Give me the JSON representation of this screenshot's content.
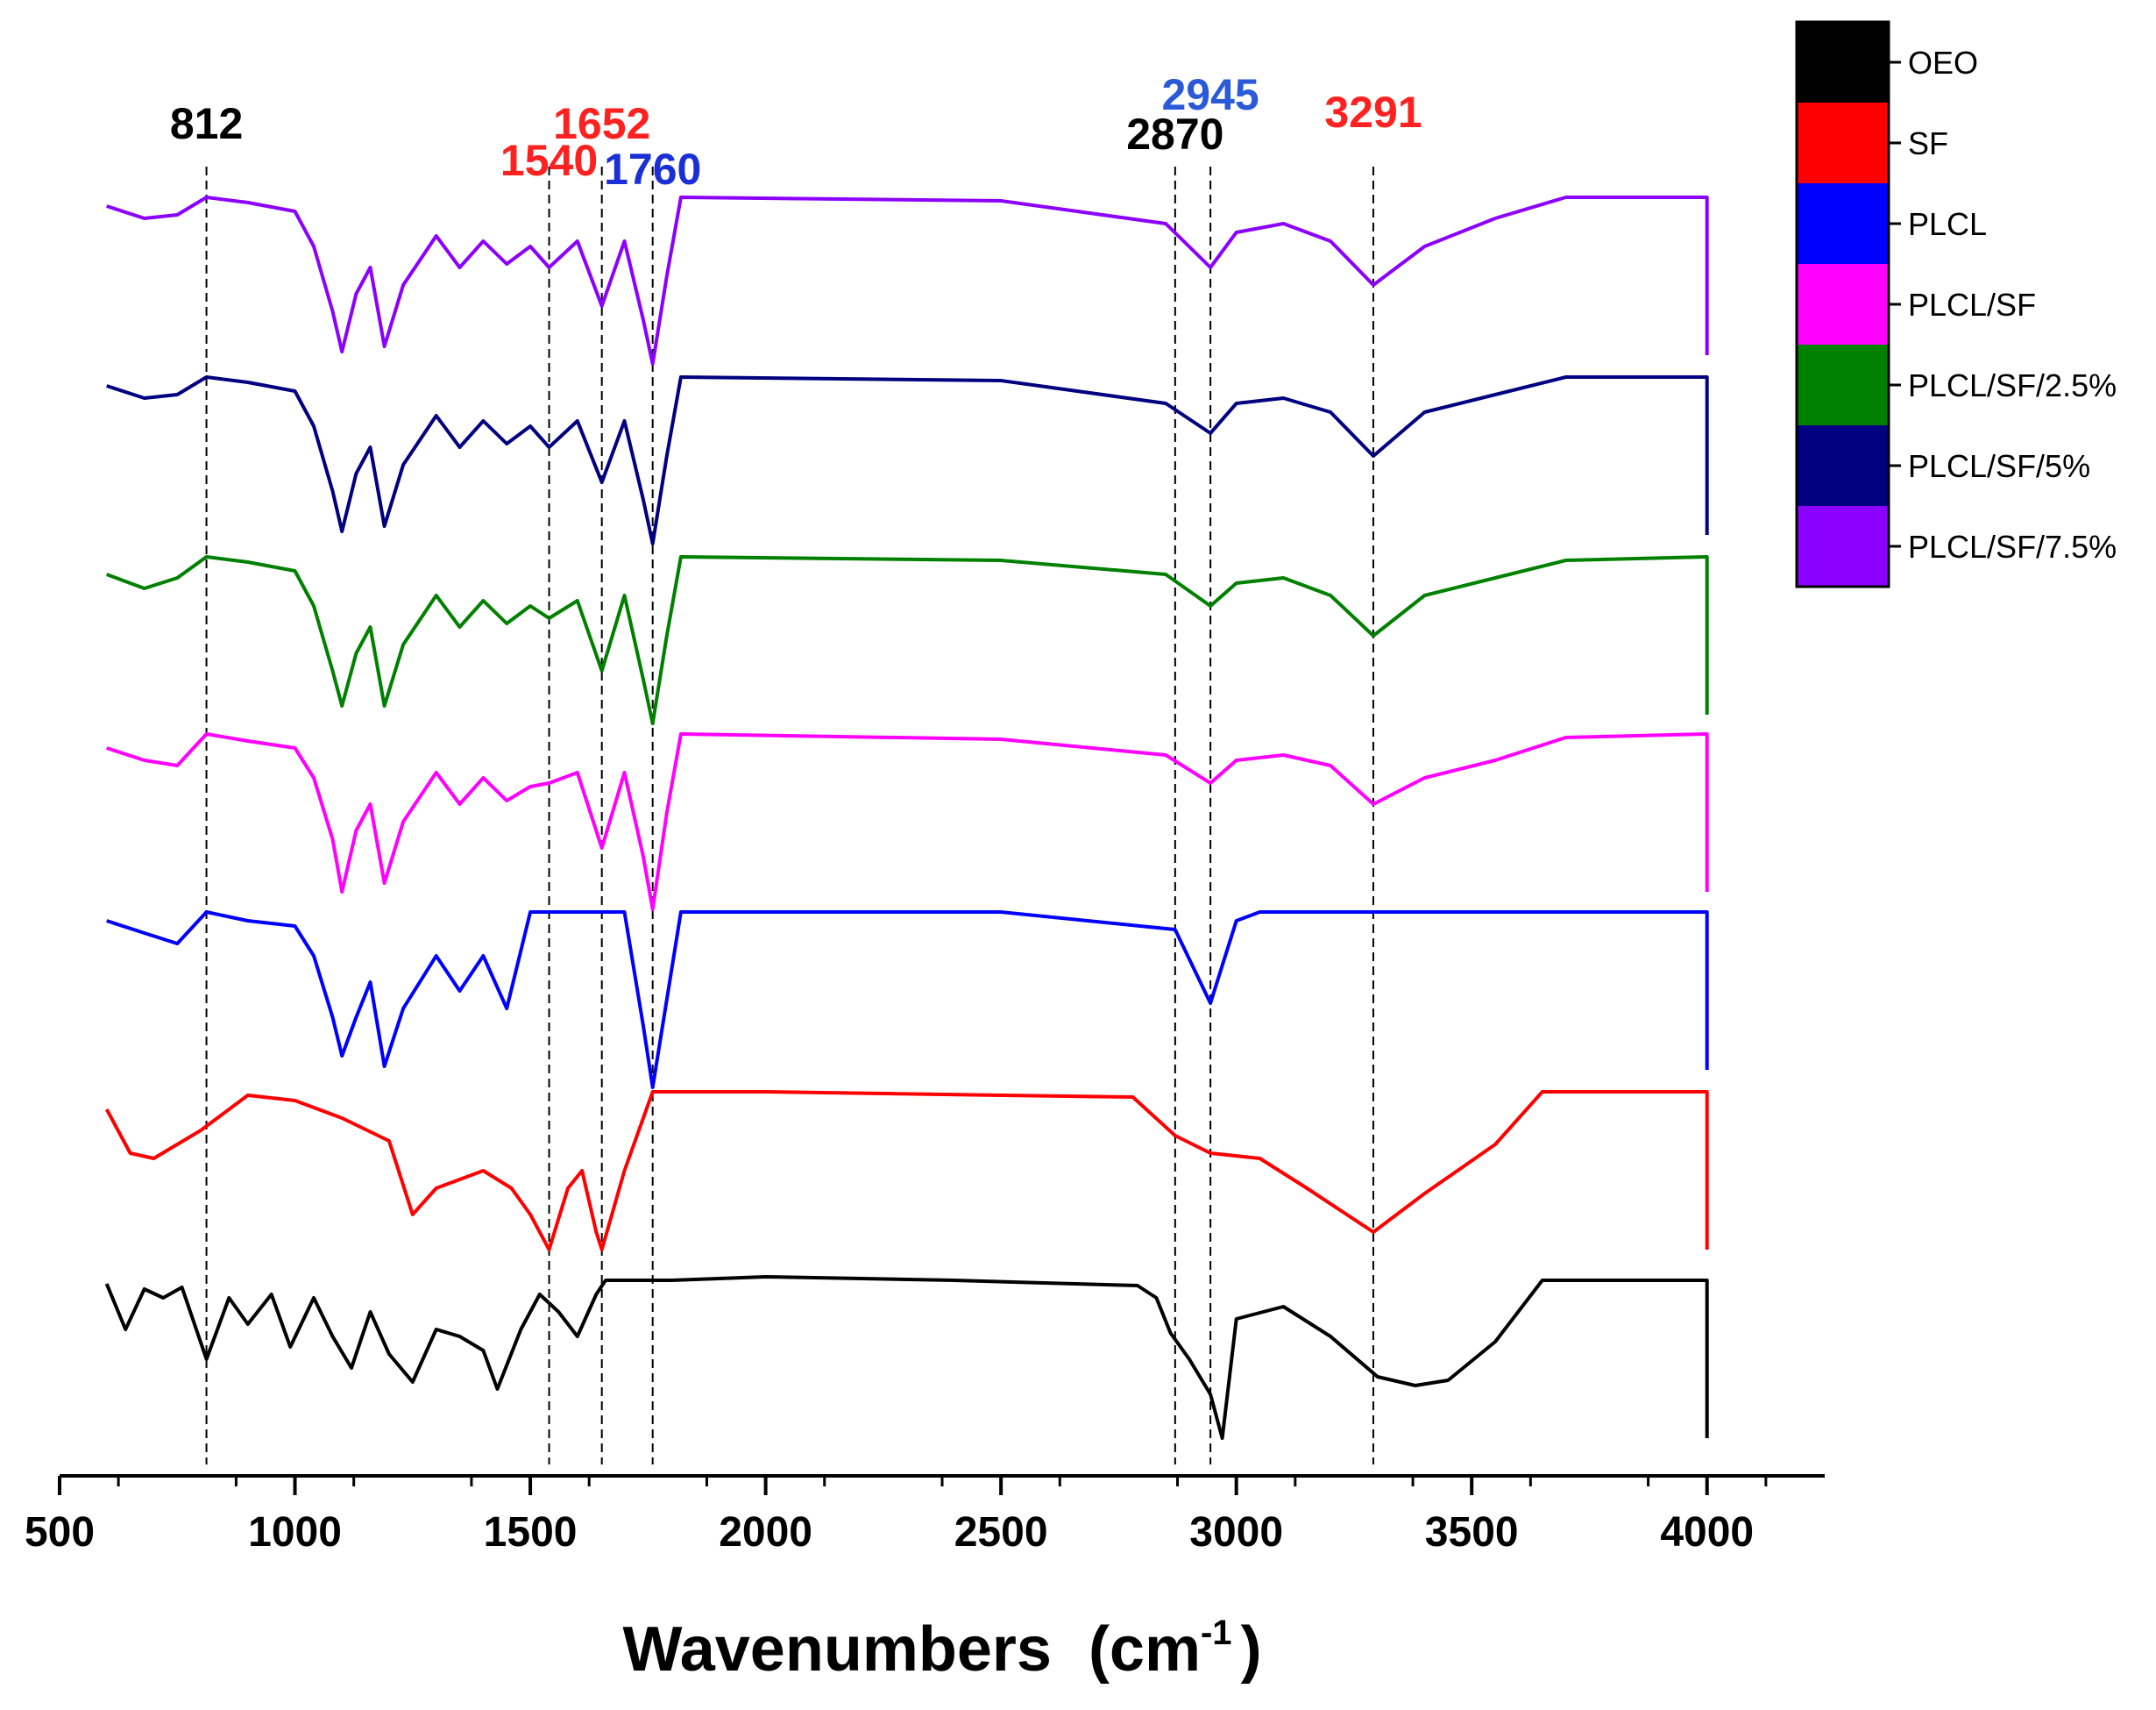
{
  "chart_data": {
    "type": "line",
    "title": "",
    "xlabel": "Wavenumbers",
    "xlabel_unit_base": "cm",
    "xlabel_unit_exp": "-1",
    "ylabel": "",
    "xlim": [
      500,
      4250
    ],
    "x_ticks": [
      500,
      1000,
      1500,
      2000,
      2500,
      3000,
      3500,
      4000
    ],
    "legend_position": "top-right",
    "grid": false,
    "peak_markers": [
      {
        "x": 812,
        "label": "812",
        "color": "#000000"
      },
      {
        "x": 1540,
        "label": "1540",
        "color": "#ff2020"
      },
      {
        "x": 1652,
        "label": "1652",
        "color": "#ff2020"
      },
      {
        "x": 1760,
        "label": "1760",
        "color": "#1a2fd6"
      },
      {
        "x": 2870,
        "label": "2870",
        "color": "#000000"
      },
      {
        "x": 2945,
        "label": "2945",
        "color": "#2a5ad8"
      },
      {
        "x": 3291,
        "label": "3291",
        "color": "#ff2020"
      }
    ],
    "series": [
      {
        "name": "OEO",
        "color": "#000000",
        "points": [
          [
            600,
            0.98
          ],
          [
            640,
            0.72
          ],
          [
            680,
            0.95
          ],
          [
            720,
            0.9
          ],
          [
            760,
            0.96
          ],
          [
            812,
            0.55
          ],
          [
            860,
            0.9
          ],
          [
            900,
            0.75
          ],
          [
            950,
            0.92
          ],
          [
            990,
            0.62
          ],
          [
            1040,
            0.9
          ],
          [
            1080,
            0.68
          ],
          [
            1120,
            0.5
          ],
          [
            1160,
            0.82
          ],
          [
            1200,
            0.58
          ],
          [
            1250,
            0.42
          ],
          [
            1300,
            0.72
          ],
          [
            1350,
            0.68
          ],
          [
            1400,
            0.6
          ],
          [
            1430,
            0.38
          ],
          [
            1480,
            0.72
          ],
          [
            1520,
            0.92
          ],
          [
            1560,
            0.82
          ],
          [
            1600,
            0.68
          ],
          [
            1640,
            0.92
          ],
          [
            1660,
            1.0
          ],
          [
            1800,
            1.0
          ],
          [
            2000,
            1.02
          ],
          [
            2400,
            1.0
          ],
          [
            2790,
            0.97
          ],
          [
            2830,
            0.9
          ],
          [
            2860,
            0.7
          ],
          [
            2900,
            0.55
          ],
          [
            2945,
            0.35
          ],
          [
            2970,
            0.1
          ],
          [
            3000,
            0.78
          ],
          [
            3100,
            0.85
          ],
          [
            3200,
            0.68
          ],
          [
            3300,
            0.45
          ],
          [
            3380,
            0.4
          ],
          [
            3450,
            0.43
          ],
          [
            3550,
            0.65
          ],
          [
            3650,
            1.0
          ],
          [
            4000,
            1.0
          ]
        ]
      },
      {
        "name": "SF",
        "color": "#ff0000",
        "points": [
          [
            600,
            0.9
          ],
          [
            650,
            0.65
          ],
          [
            700,
            0.62
          ],
          [
            800,
            0.78
          ],
          [
            900,
            0.98
          ],
          [
            1000,
            0.95
          ],
          [
            1100,
            0.85
          ],
          [
            1200,
            0.72
          ],
          [
            1250,
            0.3
          ],
          [
            1300,
            0.45
          ],
          [
            1400,
            0.55
          ],
          [
            1460,
            0.45
          ],
          [
            1500,
            0.3
          ],
          [
            1540,
            0.1
          ],
          [
            1580,
            0.45
          ],
          [
            1610,
            0.55
          ],
          [
            1640,
            0.2
          ],
          [
            1652,
            0.1
          ],
          [
            1700,
            0.55
          ],
          [
            1760,
            1.0
          ],
          [
            2000,
            1.0
          ],
          [
            2500,
            0.98
          ],
          [
            2780,
            0.97
          ],
          [
            2870,
            0.75
          ],
          [
            2945,
            0.65
          ],
          [
            3050,
            0.62
          ],
          [
            3150,
            0.45
          ],
          [
            3291,
            0.2
          ],
          [
            3400,
            0.42
          ],
          [
            3550,
            0.7
          ],
          [
            3650,
            1.0
          ],
          [
            4000,
            1.0
          ]
        ]
      },
      {
        "name": "PLCL",
        "color": "#0000ff",
        "points": [
          [
            600,
            0.95
          ],
          [
            680,
            0.88
          ],
          [
            750,
            0.82
          ],
          [
            812,
            1.0
          ],
          [
            900,
            0.95
          ],
          [
            1000,
            0.92
          ],
          [
            1040,
            0.75
          ],
          [
            1080,
            0.4
          ],
          [
            1100,
            0.18
          ],
          [
            1130,
            0.4
          ],
          [
            1160,
            0.6
          ],
          [
            1190,
            0.12
          ],
          [
            1230,
            0.45
          ],
          [
            1300,
            0.75
          ],
          [
            1350,
            0.55
          ],
          [
            1400,
            0.75
          ],
          [
            1450,
            0.45
          ],
          [
            1500,
            1.0
          ],
          [
            1700,
            1.0
          ],
          [
            1740,
            0.35
          ],
          [
            1760,
            0.0
          ],
          [
            1790,
            0.5
          ],
          [
            1820,
            1.0
          ],
          [
            2500,
            1.0
          ],
          [
            2870,
            0.9
          ],
          [
            2945,
            0.48
          ],
          [
            3000,
            0.95
          ],
          [
            3050,
            1.0
          ],
          [
            4000,
            1.0
          ]
        ]
      },
      {
        "name": "PLCL/SF",
        "color": "#ff00ff",
        "points": [
          [
            600,
            0.92
          ],
          [
            680,
            0.85
          ],
          [
            750,
            0.82
          ],
          [
            812,
            1.0
          ],
          [
            900,
            0.96
          ],
          [
            1000,
            0.92
          ],
          [
            1040,
            0.75
          ],
          [
            1080,
            0.4
          ],
          [
            1100,
            0.1
          ],
          [
            1130,
            0.45
          ],
          [
            1160,
            0.6
          ],
          [
            1190,
            0.15
          ],
          [
            1230,
            0.5
          ],
          [
            1300,
            0.78
          ],
          [
            1350,
            0.6
          ],
          [
            1400,
            0.75
          ],
          [
            1450,
            0.62
          ],
          [
            1500,
            0.7
          ],
          [
            1540,
            0.72
          ],
          [
            1600,
            0.78
          ],
          [
            1652,
            0.35
          ],
          [
            1700,
            0.78
          ],
          [
            1740,
            0.3
          ],
          [
            1760,
            0.0
          ],
          [
            1790,
            0.55
          ],
          [
            1820,
            1.0
          ],
          [
            2500,
            0.97
          ],
          [
            2850,
            0.88
          ],
          [
            2945,
            0.72
          ],
          [
            3000,
            0.85
          ],
          [
            3100,
            0.88
          ],
          [
            3200,
            0.82
          ],
          [
            3291,
            0.6
          ],
          [
            3400,
            0.75
          ],
          [
            3550,
            0.85
          ],
          [
            3700,
            0.98
          ],
          [
            4000,
            1.0
          ]
        ]
      },
      {
        "name": "PLCL/SF/2.5%",
        "color": "#008000",
        "points": [
          [
            600,
            0.9
          ],
          [
            680,
            0.82
          ],
          [
            750,
            0.88
          ],
          [
            812,
            1.0
          ],
          [
            900,
            0.97
          ],
          [
            1000,
            0.92
          ],
          [
            1040,
            0.72
          ],
          [
            1080,
            0.35
          ],
          [
            1100,
            0.15
          ],
          [
            1130,
            0.45
          ],
          [
            1160,
            0.6
          ],
          [
            1190,
            0.15
          ],
          [
            1230,
            0.5
          ],
          [
            1300,
            0.78
          ],
          [
            1350,
            0.6
          ],
          [
            1400,
            0.75
          ],
          [
            1450,
            0.62
          ],
          [
            1500,
            0.72
          ],
          [
            1540,
            0.65
          ],
          [
            1600,
            0.75
          ],
          [
            1652,
            0.35
          ],
          [
            1700,
            0.78
          ],
          [
            1740,
            0.3
          ],
          [
            1760,
            0.05
          ],
          [
            1790,
            0.55
          ],
          [
            1820,
            1.0
          ],
          [
            2500,
            0.98
          ],
          [
            2850,
            0.9
          ],
          [
            2945,
            0.72
          ],
          [
            3000,
            0.85
          ],
          [
            3100,
            0.88
          ],
          [
            3200,
            0.78
          ],
          [
            3291,
            0.55
          ],
          [
            3400,
            0.78
          ],
          [
            3550,
            0.88
          ],
          [
            3700,
            0.98
          ],
          [
            4000,
            1.0
          ]
        ]
      },
      {
        "name": "PLCL/SF/5%",
        "color": "#000080",
        "points": [
          [
            600,
            0.95
          ],
          [
            680,
            0.88
          ],
          [
            750,
            0.9
          ],
          [
            812,
            1.0
          ],
          [
            900,
            0.97
          ],
          [
            1000,
            0.92
          ],
          [
            1040,
            0.72
          ],
          [
            1080,
            0.35
          ],
          [
            1100,
            0.12
          ],
          [
            1130,
            0.45
          ],
          [
            1160,
            0.6
          ],
          [
            1190,
            0.15
          ],
          [
            1230,
            0.5
          ],
          [
            1300,
            0.78
          ],
          [
            1350,
            0.6
          ],
          [
            1400,
            0.75
          ],
          [
            1450,
            0.62
          ],
          [
            1500,
            0.72
          ],
          [
            1540,
            0.6
          ],
          [
            1600,
            0.75
          ],
          [
            1652,
            0.4
          ],
          [
            1700,
            0.75
          ],
          [
            1740,
            0.3
          ],
          [
            1760,
            0.05
          ],
          [
            1790,
            0.55
          ],
          [
            1820,
            1.0
          ],
          [
            2500,
            0.98
          ],
          [
            2850,
            0.85
          ],
          [
            2945,
            0.68
          ],
          [
            3000,
            0.85
          ],
          [
            3100,
            0.88
          ],
          [
            3200,
            0.8
          ],
          [
            3291,
            0.55
          ],
          [
            3400,
            0.8
          ],
          [
            3550,
            0.9
          ],
          [
            3700,
            1.0
          ],
          [
            4000,
            1.0
          ]
        ]
      },
      {
        "name": "PLCL/SF/7.5%",
        "color": "#8b00ff",
        "points": [
          [
            600,
            0.95
          ],
          [
            680,
            0.88
          ],
          [
            750,
            0.9
          ],
          [
            812,
            1.0
          ],
          [
            900,
            0.97
          ],
          [
            1000,
            0.92
          ],
          [
            1040,
            0.72
          ],
          [
            1080,
            0.35
          ],
          [
            1100,
            0.12
          ],
          [
            1130,
            0.45
          ],
          [
            1160,
            0.6
          ],
          [
            1190,
            0.15
          ],
          [
            1230,
            0.5
          ],
          [
            1300,
            0.78
          ],
          [
            1350,
            0.6
          ],
          [
            1400,
            0.75
          ],
          [
            1450,
            0.62
          ],
          [
            1500,
            0.72
          ],
          [
            1540,
            0.6
          ],
          [
            1600,
            0.75
          ],
          [
            1652,
            0.38
          ],
          [
            1700,
            0.75
          ],
          [
            1740,
            0.3
          ],
          [
            1760,
            0.05
          ],
          [
            1790,
            0.55
          ],
          [
            1820,
            1.0
          ],
          [
            2500,
            0.98
          ],
          [
            2850,
            0.85
          ],
          [
            2945,
            0.6
          ],
          [
            3000,
            0.8
          ],
          [
            3100,
            0.85
          ],
          [
            3200,
            0.75
          ],
          [
            3291,
            0.5
          ],
          [
            3400,
            0.72
          ],
          [
            3550,
            0.88
          ],
          [
            3700,
            1.0
          ],
          [
            4000,
            1.0
          ]
        ]
      }
    ]
  }
}
